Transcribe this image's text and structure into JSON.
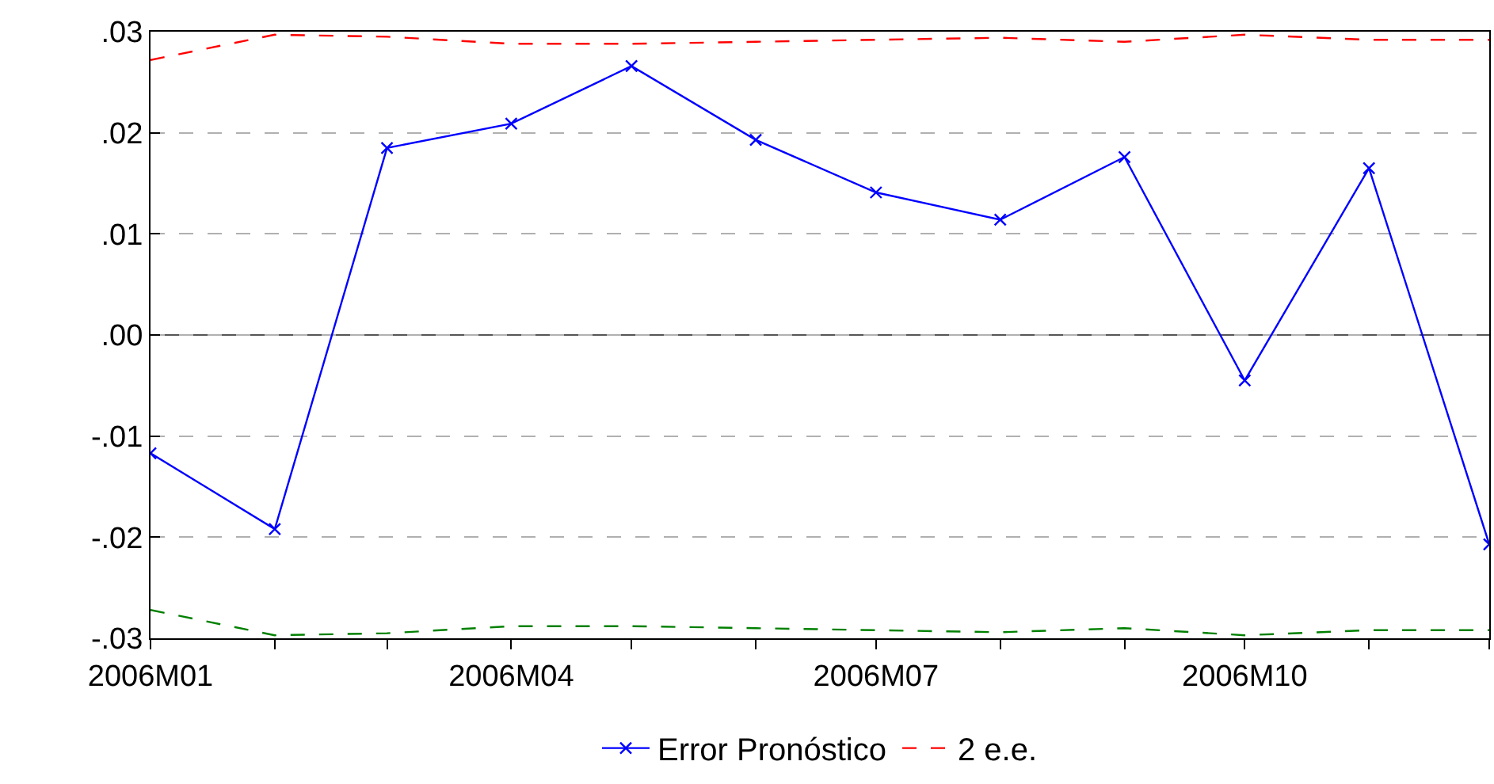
{
  "chart_data": {
    "type": "line",
    "x": [
      "2006-01",
      "2006-02",
      "2006-03",
      "2006-04",
      "2006-05",
      "2006-06",
      "2006-07",
      "2006-08",
      "2006-09",
      "2006-10",
      "2006-11",
      "2006-12"
    ],
    "series": [
      {
        "name": "Error Pronóstico",
        "color": "#0000ff",
        "marker": "cross",
        "line_style": "solid",
        "values": [
          -0.0117,
          -0.0192,
          0.0185,
          0.0209,
          0.0266,
          0.0193,
          0.0141,
          0.0114,
          0.0176,
          -0.0045,
          0.0165,
          -0.0207
        ]
      },
      {
        "name": "2 e.e.",
        "color": "#ff0000",
        "marker": "none",
        "line_style": "dashed",
        "values": [
          0.0272,
          0.0297,
          0.0295,
          0.0288,
          0.0288,
          0.029,
          0.0292,
          0.0294,
          0.029,
          0.0297,
          0.0292,
          0.0292
        ]
      },
      {
        "color": "#008000",
        "marker": "none",
        "line_style": "dashed",
        "values": [
          -0.0272,
          -0.0297,
          -0.0295,
          -0.0288,
          -0.0288,
          -0.029,
          -0.0292,
          -0.0294,
          -0.029,
          -0.0297,
          -0.0292,
          -0.0292
        ]
      }
    ],
    "xlim": [
      "2006-01",
      "2006-12"
    ],
    "xticks": [
      {
        "value": "2006-01",
        "label": "2006M01"
      },
      {
        "value": "2006-02",
        "label": null
      },
      {
        "value": "2006-03",
        "label": null
      },
      {
        "value": "2006-04",
        "label": "2006M04"
      },
      {
        "value": "2006-05",
        "label": null
      },
      {
        "value": "2006-06",
        "label": null
      },
      {
        "value": "2006-07",
        "label": "2006M07"
      },
      {
        "value": "2006-08",
        "label": null
      },
      {
        "value": "2006-09",
        "label": null
      },
      {
        "value": "2006-10",
        "label": "2006M10"
      },
      {
        "value": "2006-11",
        "label": null
      },
      {
        "value": "2006-12",
        "label": null
      }
    ],
    "ylim": [
      -0.03,
      0.03
    ],
    "yticks": [
      {
        "value": -0.03,
        "label": "-.03"
      },
      {
        "value": -0.02,
        "label": "-.02"
      },
      {
        "value": -0.01,
        "label": "-.01"
      },
      {
        "value": 0,
        "label": ".00"
      },
      {
        "value": 0.01,
        "label": ".01"
      },
      {
        "value": 0.02,
        "label": ".02"
      },
      {
        "value": 0.03,
        "label": ".03"
      }
    ],
    "grid": "y",
    "ref_lines": [
      {
        "axis": "y",
        "value": 0,
        "color": "#555555",
        "line_style": "solid"
      }
    ],
    "legend": "bottom"
  }
}
